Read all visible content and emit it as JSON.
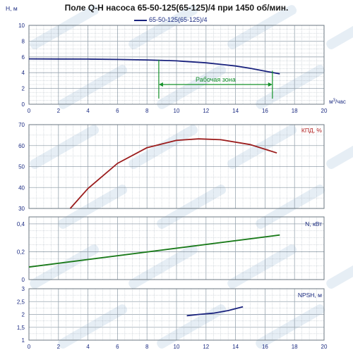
{
  "title": "Поле Q-H насоса 65-50-125(65-125)/4 при 1450 об/мин.",
  "colors": {
    "grid": "#9aa6b0",
    "axis_text": "#1a2a80",
    "H": "#1a237e",
    "eff": "#9b1c1c",
    "power": "#1a7a1a",
    "npsh": "#1a237e",
    "zone": "#14912a"
  },
  "chart_data": [
    {
      "type": "line",
      "ylabel": "H, м",
      "xlabel": "м³/час",
      "xlim": [
        0,
        20
      ],
      "ylim": [
        0,
        10
      ],
      "xticks": [
        "0",
        "2",
        "4",
        "6",
        "8",
        "10",
        "12",
        "14",
        "16",
        "18",
        "20"
      ],
      "yticks": [
        "0",
        "2",
        "4",
        "6",
        "8",
        "10"
      ],
      "grid": true,
      "legend": "top-center",
      "series": [
        {
          "name": "65-50-125(65-125)/4",
          "x": [
            0,
            2,
            4,
            6,
            8,
            10,
            12,
            13,
            14,
            15,
            16,
            17
          ],
          "y": [
            5.75,
            5.73,
            5.72,
            5.68,
            5.62,
            5.5,
            5.25,
            5.05,
            4.85,
            4.55,
            4.2,
            3.85
          ]
        }
      ],
      "annotations": [
        {
          "text": "Рабочая зона",
          "x_from": 8.8,
          "x_to": 16.5
        }
      ]
    },
    {
      "type": "line",
      "ylabel": "КПД, %",
      "xlim": [
        0,
        20
      ],
      "ylim": [
        30,
        70
      ],
      "yticks": [
        "30",
        "40",
        "50",
        "60",
        "70"
      ],
      "grid": true,
      "series": [
        {
          "x": [
            2.8,
            4,
            6,
            8,
            10,
            11.5,
            13,
            15,
            16.8
          ],
          "y": [
            30,
            39.5,
            51.5,
            59,
            62.5,
            63.2,
            62.8,
            60.5,
            56.5
          ]
        }
      ]
    },
    {
      "type": "line",
      "ylabel": "N, кВт",
      "xlim": [
        0,
        20
      ],
      "ylim": [
        0,
        0.45
      ],
      "yticks": [
        "0",
        "0,2",
        "0,4"
      ],
      "grid": true,
      "series": [
        {
          "x": [
            0,
            17
          ],
          "y": [
            0.09,
            0.32
          ]
        }
      ]
    },
    {
      "type": "line",
      "ylabel": "NPSH, м",
      "xlim": [
        0,
        20
      ],
      "ylim": [
        1,
        3
      ],
      "xticks": [
        "0",
        "2",
        "4",
        "6",
        "8",
        "10",
        "12",
        "14",
        "16",
        "18",
        "20"
      ],
      "yticks": [
        "1",
        "1,5",
        "2",
        "2,5",
        "3"
      ],
      "grid": true,
      "series": [
        {
          "x": [
            10.7,
            11.5,
            12.5,
            13.5,
            14.5
          ],
          "y": [
            1.95,
            2.0,
            2.05,
            2.15,
            2.3
          ]
        }
      ]
    }
  ]
}
